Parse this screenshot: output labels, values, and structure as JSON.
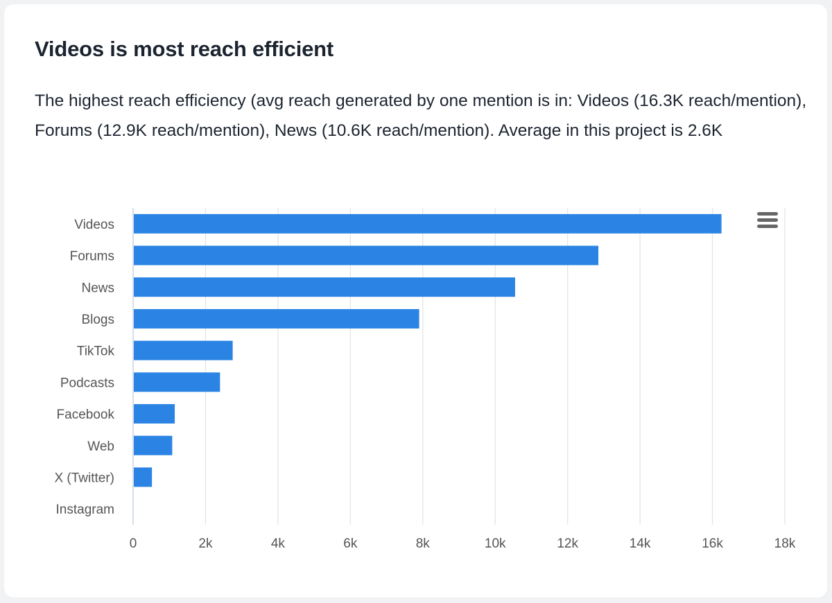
{
  "card": {
    "title": "Videos is most reach efficient",
    "description": "The highest reach efficiency (avg reach generated by one mention is in: Videos (16.3K reach/mention), Forums (12.9K reach/mention), News (10.6K reach/mention). Average in this project is 2.6K"
  },
  "menu": {
    "icon": "hamburger-menu-icon"
  },
  "colors": {
    "bar": "#2b84e4",
    "grid": "#e4e4e4",
    "axis_line": "#c8d4e6",
    "tick_text": "#555555"
  },
  "chart_data": {
    "type": "bar",
    "orientation": "horizontal",
    "categories": [
      "Videos",
      "Forums",
      "News",
      "Blogs",
      "TikTok",
      "Podcasts",
      "Facebook",
      "Web",
      "X (Twitter)",
      "Instagram"
    ],
    "values": [
      16250,
      12850,
      10550,
      7900,
      2750,
      2400,
      1150,
      1080,
      520,
      0
    ],
    "title": "",
    "xlabel": "",
    "ylabel": "",
    "xlim": [
      0,
      18000
    ],
    "x_ticks": [
      0,
      2000,
      4000,
      6000,
      8000,
      10000,
      12000,
      14000,
      16000,
      18000
    ],
    "x_tick_labels": [
      "0",
      "2k",
      "4k",
      "6k",
      "8k",
      "10k",
      "12k",
      "14k",
      "16k",
      "18k"
    ],
    "grid": true,
    "legend": "none"
  }
}
